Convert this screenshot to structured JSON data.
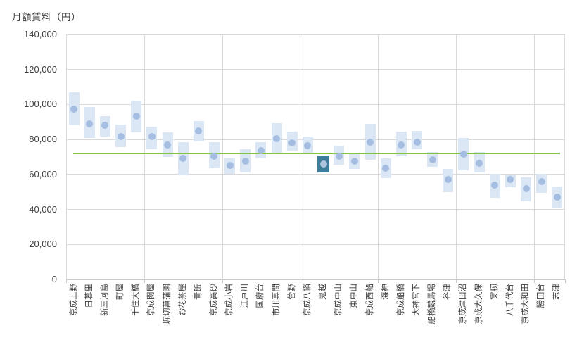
{
  "chart_data": {
    "type": "scatter-range",
    "title": "月額賃料（円）",
    "xlabel": "",
    "ylabel": "月額賃料（円）",
    "ylim": [
      0,
      140000
    ],
    "ytick_step": 20000,
    "y_tick_labels": [
      "0",
      "20,000",
      "40,000",
      "60,000",
      "80,000",
      "100,000",
      "120,000",
      "140,000"
    ],
    "grid": true,
    "x_gridline_every": 5,
    "legend": "none",
    "average_line_value": 72000,
    "highlighted_category": "鬼越",
    "highlighted_index": 16,
    "points": [
      {
        "station": "京成上野",
        "min": 88000,
        "max": 107000,
        "avg": 97500
      },
      {
        "station": "日暮里",
        "min": 81000,
        "max": 98500,
        "avg": 89000
      },
      {
        "station": "新三河島",
        "min": 81500,
        "max": 93500,
        "avg": 88000
      },
      {
        "station": "町屋",
        "min": 75500,
        "max": 88500,
        "avg": 81500
      },
      {
        "station": "千住大橋",
        "min": 84000,
        "max": 102000,
        "avg": 93500
      },
      {
        "station": "京成関屋",
        "min": 74500,
        "max": 87500,
        "avg": 81500
      },
      {
        "station": "堀切菖蒲園",
        "min": 70000,
        "max": 84000,
        "avg": 77000
      },
      {
        "station": "お花茶屋",
        "min": 59500,
        "max": 78500,
        "avg": 69000
      },
      {
        "station": "青砥",
        "min": 79000,
        "max": 90500,
        "avg": 85000
      },
      {
        "station": "京成高砂",
        "min": 63500,
        "max": 78500,
        "avg": 70500
      },
      {
        "station": "京成小岩",
        "min": 60500,
        "max": 69500,
        "avg": 65000
      },
      {
        "station": "江戸川",
        "min": 61000,
        "max": 74500,
        "avg": 67500
      },
      {
        "station": "国府台",
        "min": 69000,
        "max": 78500,
        "avg": 73500
      },
      {
        "station": "市川真間",
        "min": 72500,
        "max": 89500,
        "avg": 80500
      },
      {
        "station": "菅野",
        "min": 73500,
        "max": 84500,
        "avg": 78000
      },
      {
        "station": "京成八幡",
        "min": 72500,
        "max": 81500,
        "avg": 76500
      },
      {
        "station": "鬼越",
        "min": 61000,
        "max": 71000,
        "avg": 66000
      },
      {
        "station": "京成中山",
        "min": 65500,
        "max": 76500,
        "avg": 70500
      },
      {
        "station": "東中山",
        "min": 63000,
        "max": 72500,
        "avg": 67500
      },
      {
        "station": "京成西船",
        "min": 68500,
        "max": 89000,
        "avg": 78500
      },
      {
        "station": "海神",
        "min": 58000,
        "max": 69000,
        "avg": 63500
      },
      {
        "station": "京成船橋",
        "min": 70500,
        "max": 84500,
        "avg": 77000
      },
      {
        "station": "大神宮下",
        "min": 74500,
        "max": 85000,
        "avg": 78500
      },
      {
        "station": "船橋競馬場",
        "min": 64500,
        "max": 73000,
        "avg": 68500
      },
      {
        "station": "谷津",
        "min": 50000,
        "max": 63000,
        "avg": 57000
      },
      {
        "station": "京成津田沼",
        "min": 62500,
        "max": 81000,
        "avg": 71500
      },
      {
        "station": "京成大久保",
        "min": 61000,
        "max": 73000,
        "avg": 66500
      },
      {
        "station": "実籾",
        "min": 46500,
        "max": 60500,
        "avg": 54000
      },
      {
        "station": "八千代台",
        "min": 52500,
        "max": 60000,
        "avg": 57000
      },
      {
        "station": "京成大和田",
        "min": 44500,
        "max": 58500,
        "avg": 52000
      },
      {
        "station": "勝田台",
        "min": 49500,
        "max": 60500,
        "avg": 56000
      },
      {
        "station": "志津",
        "min": 40500,
        "max": 53000,
        "avg": 47000
      }
    ]
  },
  "colors": {
    "range_bar": "#dbe7f4",
    "avg_dot": "#a4bde1",
    "highlight_box": "#3e7d9b",
    "highlight_dot": "#aec3dc",
    "average_line": "#86c343",
    "gridline": "#d9d9d9",
    "axis_line": "#c8c8c8",
    "text": "#3f3f3f"
  }
}
